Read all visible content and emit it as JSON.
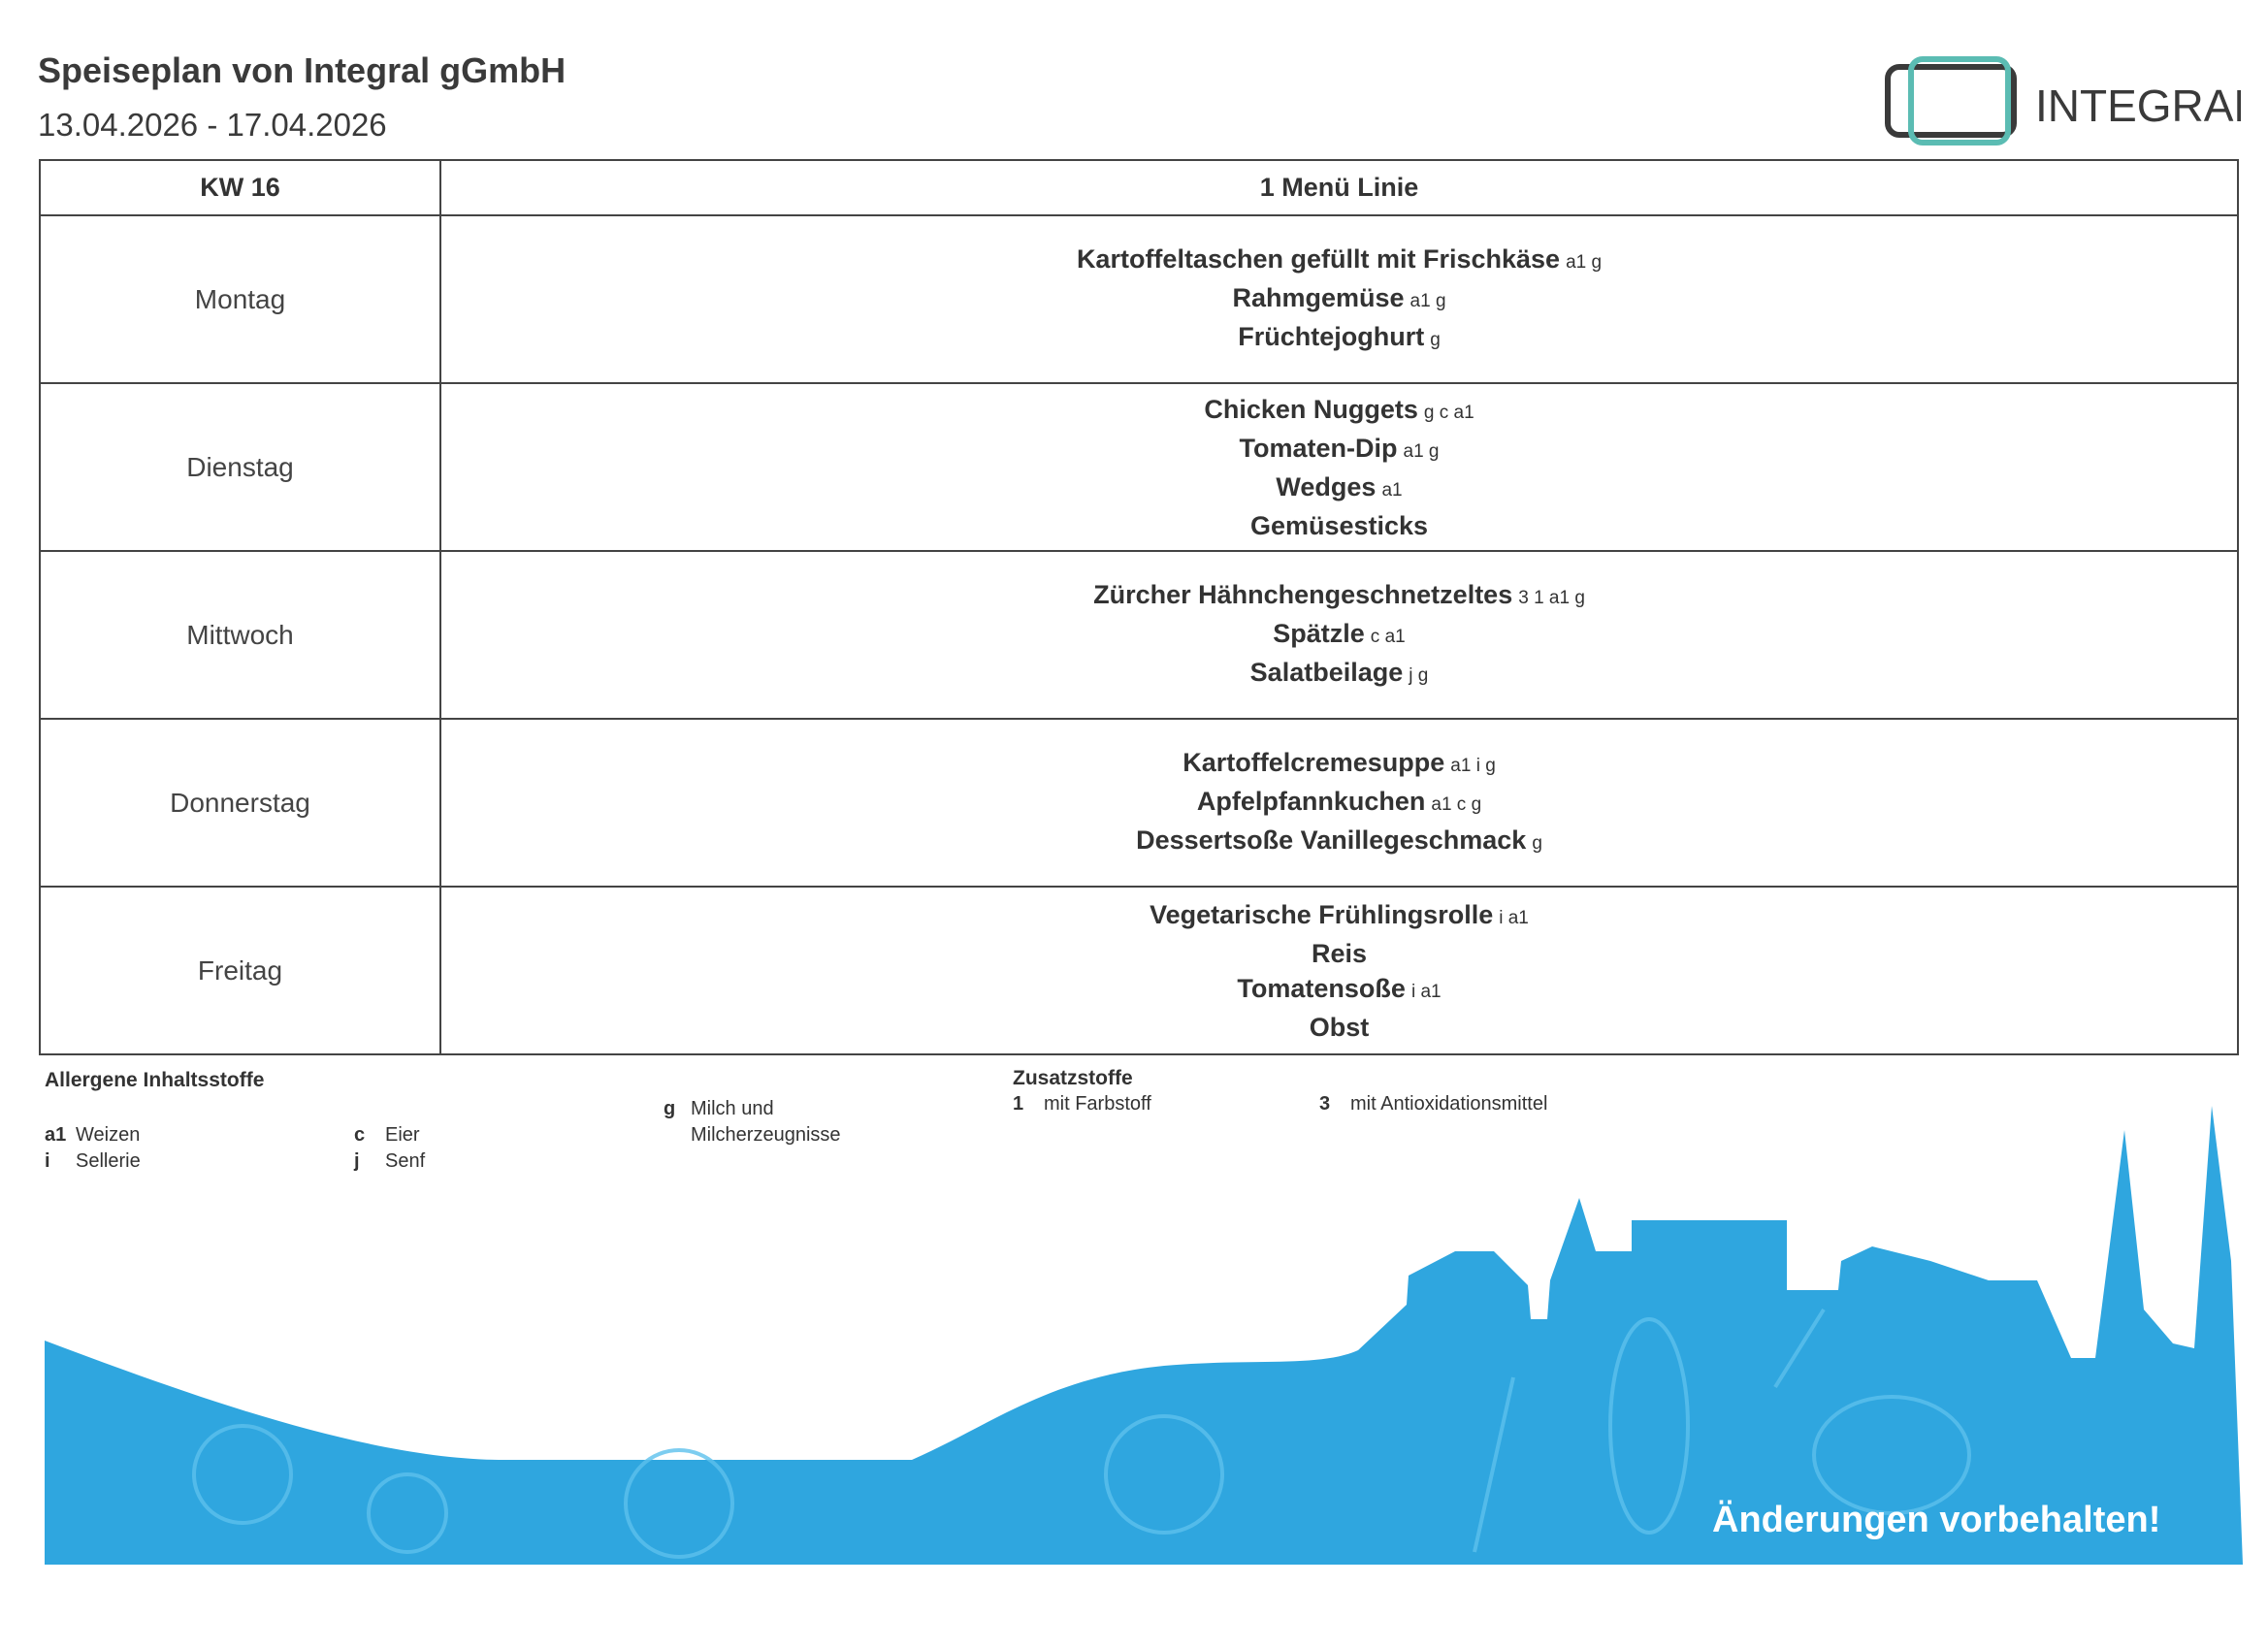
{
  "header": {
    "title": "Speiseplan von Integral gGmbH",
    "date_range": "13.04.2026 - 17.04.2026",
    "logo_text": "INTEGRAL"
  },
  "table": {
    "headers": [
      "KW 16",
      "1 Menü Linie"
    ],
    "rows": [
      {
        "day": "Montag",
        "items": [
          {
            "name": "Kartoffeltaschen gefüllt mit Frischkäse",
            "allergens": "a1 g"
          },
          {
            "name": "Rahmgemüse",
            "allergens": "a1 g"
          },
          {
            "name": "Früchtejoghurt",
            "allergens": "g"
          }
        ]
      },
      {
        "day": "Dienstag",
        "items": [
          {
            "name": "Chicken Nuggets",
            "allergens": "g c a1"
          },
          {
            "name": "Tomaten-Dip",
            "allergens": "a1 g"
          },
          {
            "name": "Wedges",
            "allergens": "a1"
          },
          {
            "name": "Gemüsesticks"
          }
        ]
      },
      {
        "day": "Mittwoch",
        "items": [
          {
            "name": "Zürcher Hähnchengeschnetzeltes",
            "allergens": "3 1 a1 g"
          },
          {
            "name": "Spätzle",
            "allergens": "c a1"
          },
          {
            "name": "Salatbeilage",
            "allergens": "j g"
          }
        ]
      },
      {
        "day": "Donnerstag",
        "items": [
          {
            "name": "Kartoffelcremesuppe",
            "allergens": "a1 i g"
          },
          {
            "name": "Apfelpfannkuchen",
            "allergens": "a1 c g"
          },
          {
            "name": "Dessertsoße Vanillegeschmack",
            "allergens": "g"
          }
        ]
      },
      {
        "day": "Freitag",
        "items": [
          {
            "name": "Vegetarische Frühlingsrolle",
            "allergens": "i a1"
          },
          {
            "name": "Reis"
          },
          {
            "name": "Tomatensoße",
            "allergens": "i a1"
          },
          {
            "name": "Obst"
          }
        ]
      }
    ]
  },
  "legend": {
    "allergens_title": "Allergene Inhaltsstoffe",
    "allergens": [
      {
        "code": "a1",
        "label": "Weizen"
      },
      {
        "code": "i",
        "label": "Sellerie"
      },
      {
        "code": "c",
        "label": "Eier"
      },
      {
        "code": "j",
        "label": "Senf"
      },
      {
        "code": "g",
        "label": "Milch und Milcherzeugnisse"
      }
    ],
    "additives_title": "Zusatzstoffe",
    "additives": [
      {
        "code": "1",
        "label": "mit Farbstoff"
      },
      {
        "code": "3",
        "label": "mit Antioxidationsmittel"
      }
    ]
  },
  "footer": {
    "note": "Änderungen vorbehalten!"
  }
}
